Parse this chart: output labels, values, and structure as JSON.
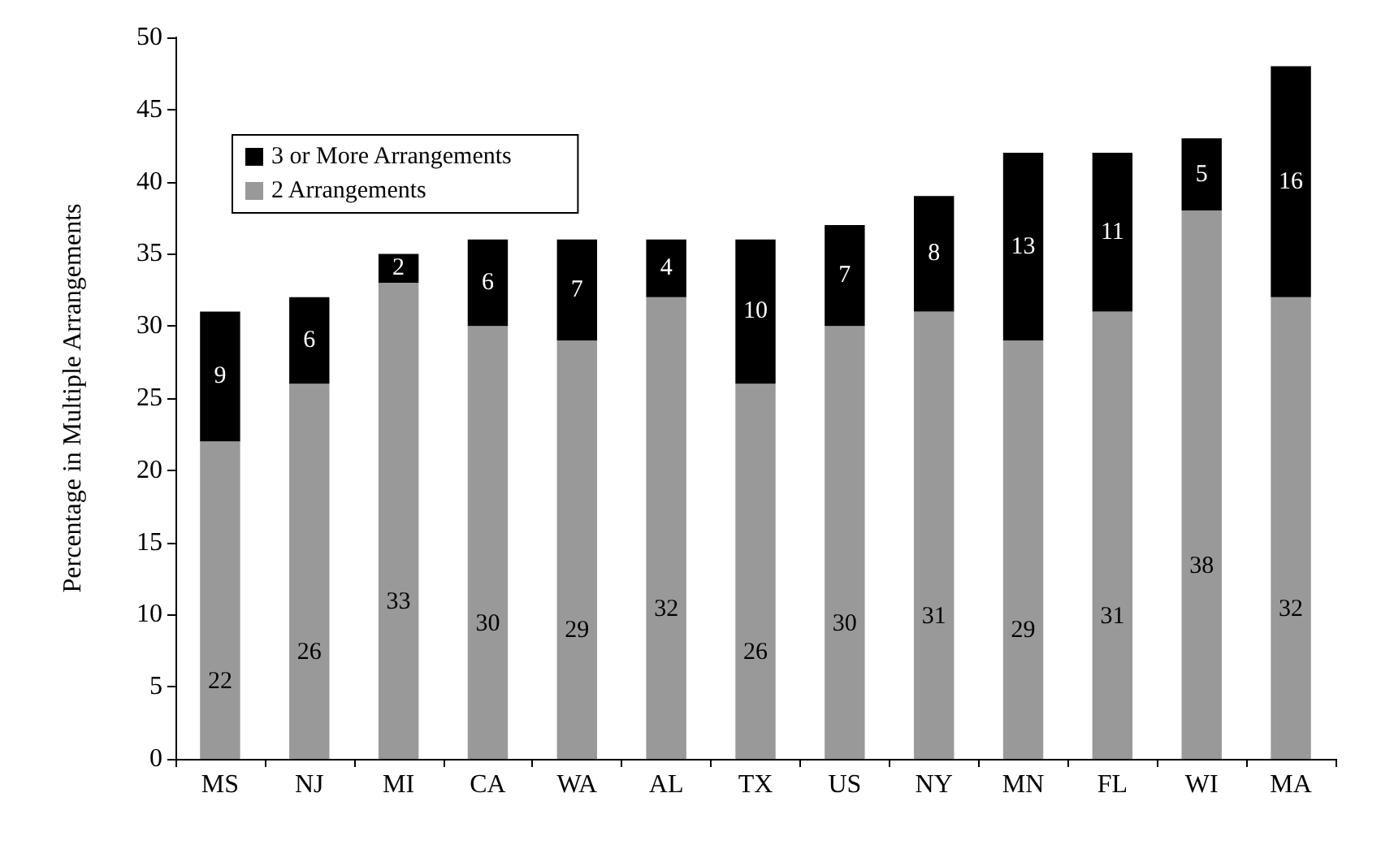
{
  "chart_data": {
    "type": "bar",
    "stacked": true,
    "ylabel": "Percentage in Multiple Arrangements",
    "categories": [
      "MS",
      "NJ",
      "MI",
      "CA",
      "WA",
      "AL",
      "TX",
      "US",
      "NY",
      "MN",
      "FL",
      "WI",
      "MA"
    ],
    "series": [
      {
        "name": "2 Arrangements",
        "color": "#999999",
        "values": [
          22,
          26,
          33,
          30,
          29,
          32,
          26,
          30,
          31,
          29,
          31,
          38,
          32
        ]
      },
      {
        "name": "3 or More Arrangements",
        "color": "#000000",
        "values": [
          9,
          6,
          2,
          6,
          7,
          4,
          10,
          7,
          8,
          13,
          11,
          5,
          16
        ]
      }
    ],
    "ylim": [
      0,
      50
    ],
    "yticks": [
      0,
      5,
      10,
      15,
      20,
      25,
      30,
      35,
      40,
      45,
      50
    ],
    "grid": false,
    "legend": "top left",
    "data_labels": true
  }
}
